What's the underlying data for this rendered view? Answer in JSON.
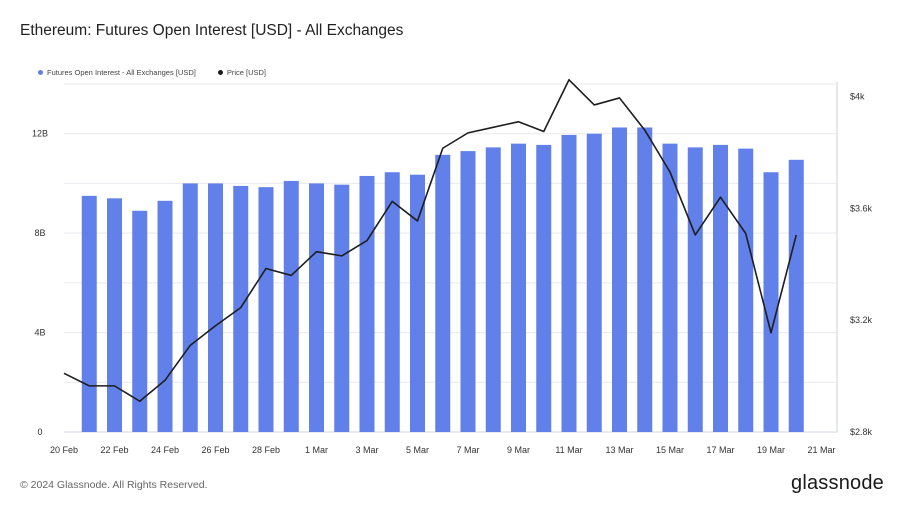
{
  "title": "Ethereum: Futures Open Interest [USD] - All Exchanges",
  "footer": "© 2024 Glassnode. All Rights Reserved.",
  "logo": "glassnode",
  "colors": {
    "bar": "#6180ea",
    "line": "#1e1e1e",
    "grid": "#e9e9ee"
  },
  "chart_data": {
    "type": "bar",
    "x_ticks": [
      "20 Feb",
      "22 Feb",
      "24 Feb",
      "26 Feb",
      "28 Feb",
      "1 Mar",
      "3 Mar",
      "5 Mar",
      "7 Mar",
      "9 Mar",
      "11 Mar",
      "13 Mar",
      "15 Mar",
      "17 Mar",
      "19 Mar",
      "21 Mar"
    ],
    "y_left_ticks": [
      "0",
      "4B",
      "8B",
      "12B"
    ],
    "y_left_range": [
      0,
      14.08
    ],
    "y_right_ticks": [
      "$2.8k",
      "$3.2k",
      "$3.6k",
      "$4k"
    ],
    "y_right_range": [
      2800,
      4052
    ],
    "legend_position": "top-left",
    "series": [
      {
        "name": "Futures Open Interest - All Exchanges [USD]",
        "type": "bar",
        "axis": "left",
        "dates": [
          "21 Feb",
          "22 Feb",
          "23 Feb",
          "24 Feb",
          "25 Feb",
          "26 Feb",
          "27 Feb",
          "28 Feb",
          "29 Feb",
          "1 Mar",
          "2 Mar",
          "3 Mar",
          "4 Mar",
          "5 Mar",
          "6 Mar",
          "7 Mar",
          "8 Mar",
          "9 Mar",
          "10 Mar",
          "11 Mar",
          "12 Mar",
          "13 Mar",
          "14 Mar",
          "15 Mar",
          "16 Mar",
          "17 Mar",
          "18 Mar",
          "19 Mar",
          "20 Mar"
        ],
        "values": [
          9.5,
          9.4,
          8.9,
          9.3,
          10.0,
          10.0,
          9.9,
          9.85,
          10.1,
          10.0,
          9.95,
          10.3,
          10.45,
          10.35,
          11.15,
          11.3,
          11.45,
          11.6,
          11.55,
          11.95,
          12.0,
          12.25,
          12.25,
          11.6,
          11.45,
          11.55,
          11.4,
          10.45,
          10.95
        ]
      },
      {
        "name": "Price [USD]",
        "type": "line",
        "axis": "right",
        "dates": [
          "20 Feb",
          "21 Feb",
          "22 Feb",
          "23 Feb",
          "24 Feb",
          "25 Feb",
          "26 Feb",
          "27 Feb",
          "28 Feb",
          "29 Feb",
          "1 Mar",
          "2 Mar",
          "3 Mar",
          "4 Mar",
          "5 Mar",
          "6 Mar",
          "7 Mar",
          "8 Mar",
          "9 Mar",
          "10 Mar",
          "11 Mar",
          "12 Mar",
          "13 Mar",
          "14 Mar",
          "15 Mar",
          "16 Mar",
          "17 Mar",
          "18 Mar",
          "19 Mar",
          "20 Mar"
        ],
        "values": [
          3010,
          2965,
          2965,
          2910,
          2985,
          3110,
          3180,
          3245,
          3385,
          3360,
          3445,
          3430,
          3485,
          3625,
          3555,
          3815,
          3870,
          3890,
          3910,
          3875,
          4060,
          3970,
          3995,
          3880,
          3730,
          3505,
          3640,
          3510,
          3155,
          3505
        ]
      }
    ]
  }
}
